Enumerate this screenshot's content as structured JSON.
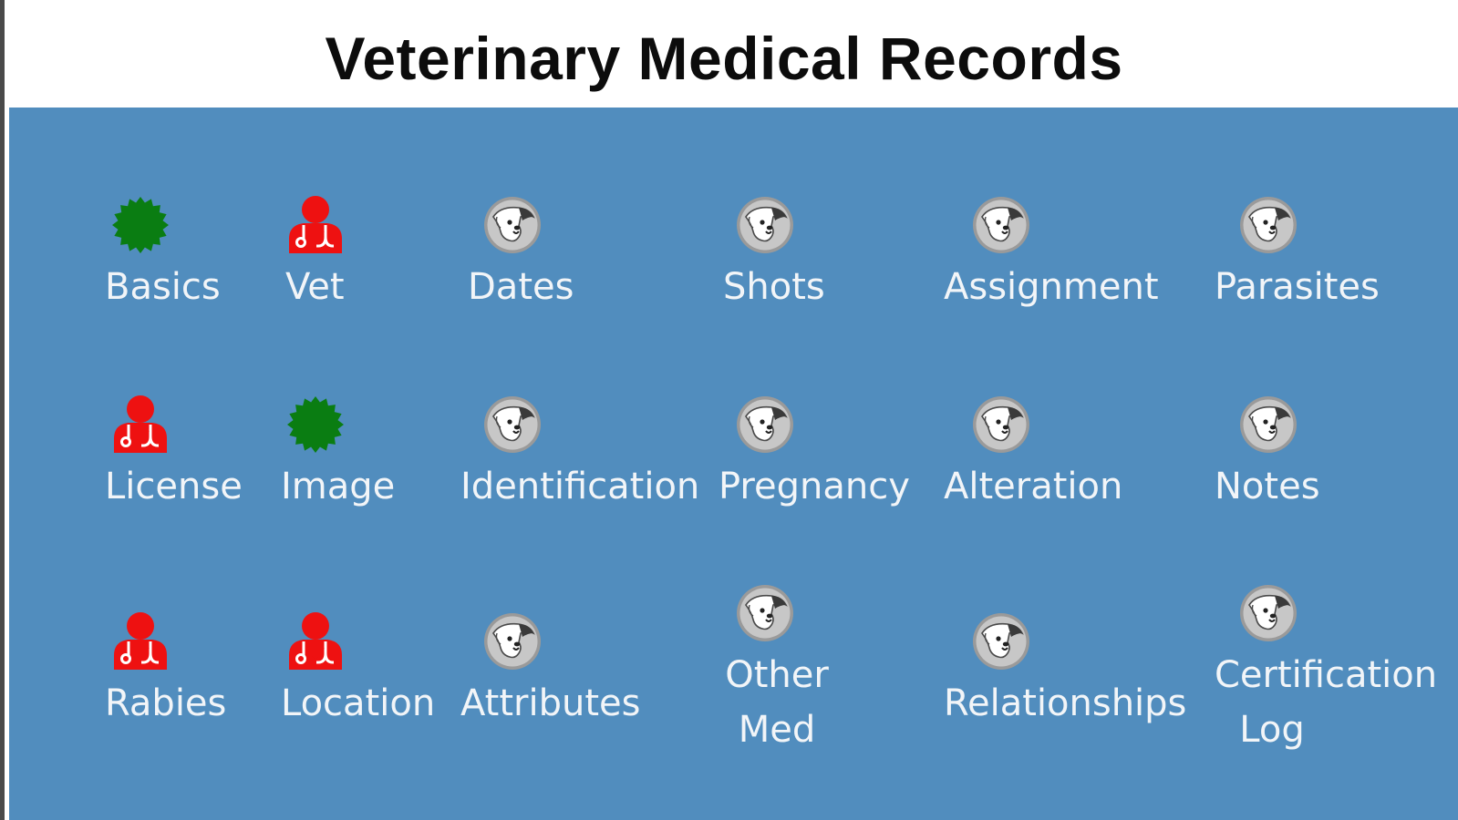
{
  "title": "Veterinary Medical Records",
  "colors": {
    "header_bg": "#ffffff",
    "panel_bg": "#518dbe",
    "label": "#f2f5f8",
    "status_complete": "#0a7d12",
    "status_required": "#ee1111",
    "status_optional": "#c7c7c7"
  },
  "tiles": [
    {
      "id": "basics",
      "label": "Basics",
      "icon": "green-seal-icon"
    },
    {
      "id": "vet",
      "label": "Vet",
      "icon": "red-doctor-icon"
    },
    {
      "id": "dates",
      "label": "Dates",
      "icon": "dog-face-icon"
    },
    {
      "id": "shots",
      "label": "Shots",
      "icon": "dog-face-icon"
    },
    {
      "id": "assignment",
      "label": "Assignment",
      "icon": "dog-face-icon"
    },
    {
      "id": "parasites",
      "label": "Parasites",
      "icon": "dog-face-icon"
    },
    {
      "id": "license",
      "label": "License",
      "icon": "red-doctor-icon"
    },
    {
      "id": "image",
      "label": "Image",
      "icon": "green-seal-icon"
    },
    {
      "id": "identification",
      "label": "Identification",
      "icon": "dog-face-icon"
    },
    {
      "id": "pregnancy",
      "label": "Pregnancy",
      "icon": "dog-face-icon"
    },
    {
      "id": "alteration",
      "label": "Alteration",
      "icon": "dog-face-icon"
    },
    {
      "id": "notes",
      "label": "Notes",
      "icon": "dog-face-icon"
    },
    {
      "id": "rabies",
      "label": "Rabies",
      "icon": "red-doctor-icon"
    },
    {
      "id": "location",
      "label": "Location",
      "icon": "red-doctor-icon"
    },
    {
      "id": "attributes",
      "label": "Attributes",
      "icon": "dog-face-icon"
    },
    {
      "id": "other-med",
      "label": "Other\nMed",
      "icon": "dog-face-icon"
    },
    {
      "id": "relationships",
      "label": "Relationships",
      "icon": "dog-face-icon"
    },
    {
      "id": "certification-log",
      "label": "Certification\nLog",
      "icon": "dog-face-icon"
    }
  ]
}
